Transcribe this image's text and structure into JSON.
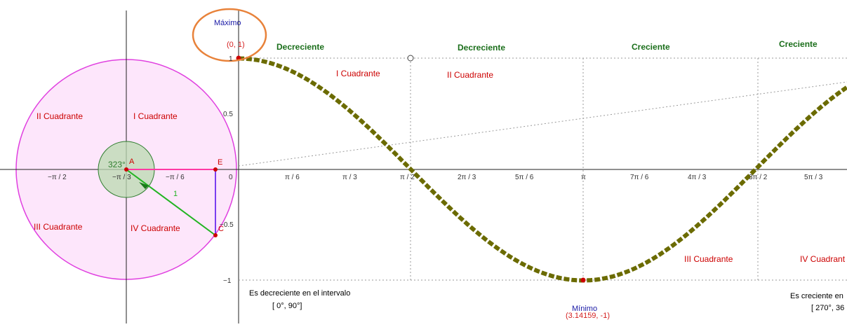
{
  "colors": {
    "curve": "#6b6b00",
    "circle": "#e040e0",
    "circle_fill": "#fde6fb",
    "angle": "#2e7d2e",
    "radius": "#22b422",
    "cosine_segment": "#ff3aa3",
    "sine_segment": "#7a3ef0",
    "point": "#cc0000",
    "axis": "#222222",
    "grid": "#9a9a9a",
    "monotonic_label": "#1a6e1a",
    "quadrant_label": "#cc0000",
    "highlight": "#e8823a"
  },
  "circle_panel": {
    "quadrant_labels": [
      "II Cuadrante",
      "I Cuadrante",
      "III Cuadrante",
      "IV Cuadrante"
    ],
    "angle_label": "323°",
    "point_A": "A",
    "point_E": "E",
    "point_C": "C",
    "radius_label": "1",
    "x_ticks": [
      "−π / 2",
      "−π / 3",
      "−π / 6",
      "0"
    ]
  },
  "graph": {
    "x_ticks": [
      "π / 6",
      "π / 3",
      "π / 2",
      "2π / 3",
      "5π / 6",
      "π",
      "7π / 6",
      "4π / 3",
      "3π / 2",
      "5π / 3"
    ],
    "y_ticks": [
      "1",
      "0.5",
      "−0.5",
      "−1"
    ],
    "maximum": {
      "title": "Máximo",
      "coords": "(0, 1)"
    },
    "minimum": {
      "title": "Mínimo",
      "coords": "(3.14159, -1)"
    },
    "monotonic_labels": [
      "Decreciente",
      "Decreciente",
      "Creciente",
      "Creciente"
    ],
    "quadrant_labels": [
      "I Cuadrante",
      "II Cuadrante",
      "III Cuadrante",
      "IV Cuadrant"
    ],
    "notes": {
      "decreasing_text": "Es decreciente en el intervalo",
      "decreasing_interval": "[ 0°, 90°]",
      "increasing_text": "Es creciente en",
      "increasing_interval": "[ 270°, 36"
    }
  },
  "chart_data": {
    "type": "line",
    "series": [
      {
        "function": "cos(x)",
        "x": [
          0,
          0.5236,
          1.0472,
          1.5708,
          2.0944,
          2.618,
          3.1416,
          3.6652,
          4.1888,
          4.7124,
          5.236,
          5.6
        ],
        "values": [
          1,
          0.866,
          0.5,
          0,
          -0.5,
          -0.866,
          -1,
          -0.866,
          -0.5,
          0,
          0.5,
          0.78
        ]
      }
    ],
    "ylim": [
      -1,
      1
    ],
    "grid": true
  }
}
